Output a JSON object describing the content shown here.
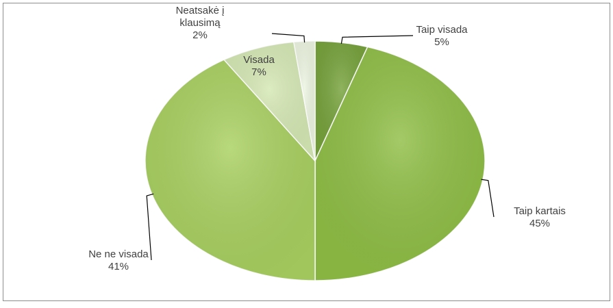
{
  "chart_data": {
    "type": "pie",
    "title": "",
    "slices": [
      {
        "label": "Taip visada",
        "value": 5,
        "value_label": "5%",
        "color": "#76a23b"
      },
      {
        "label": "Taip kartais",
        "value": 45,
        "value_label": "45%",
        "color": "#8fbe45"
      },
      {
        "label": "Ne ne visada",
        "value": 41,
        "value_label": "41%",
        "color": "#a9d060"
      },
      {
        "label": "Visada",
        "value": 7,
        "value_label": "7%",
        "color": "#d5e8b4"
      },
      {
        "label": "Neatsakė į klausimą",
        "label_lines": [
          "Neatsakė į",
          "klausimą"
        ],
        "value": 2,
        "value_label": "2%",
        "color": "#edf5e1"
      }
    ],
    "legend": "none",
    "labels_outside": true
  }
}
